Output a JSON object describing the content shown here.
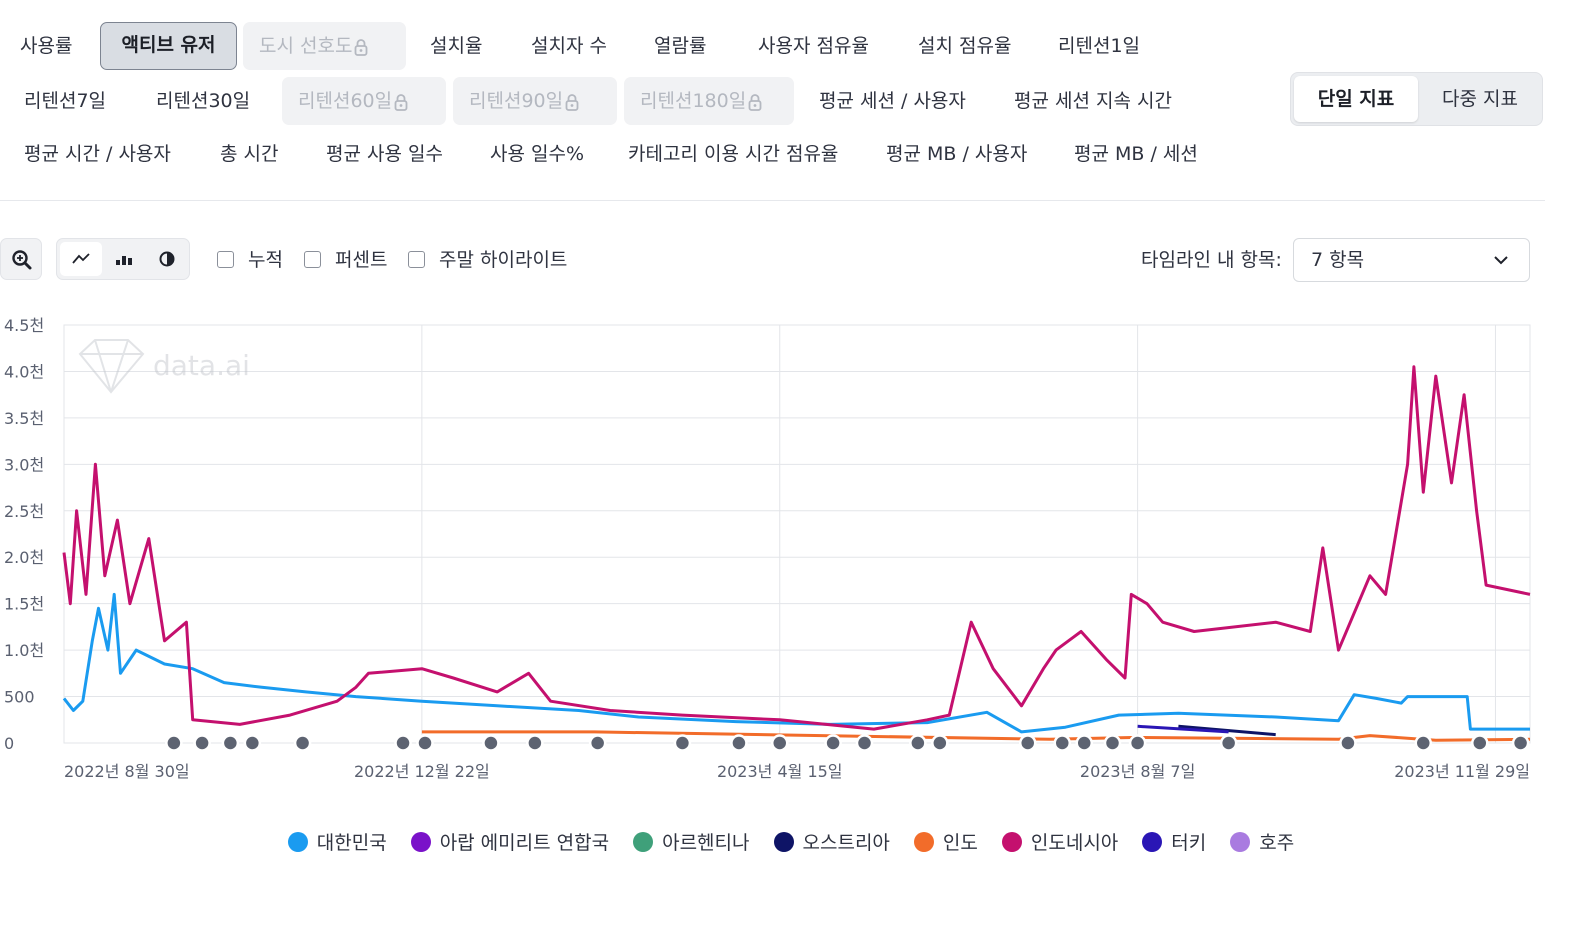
{
  "metric_tabs": [
    {
      "label": "사용률",
      "state": "normal"
    },
    {
      "label": "액티브 유저",
      "state": "active"
    },
    {
      "label": "도시 선호도",
      "state": "locked"
    },
    {
      "label": "설치율",
      "state": "normal"
    },
    {
      "label": "설치자 수",
      "state": "normal"
    },
    {
      "label": "열람률",
      "state": "normal"
    },
    {
      "label": "사용자 점유율",
      "state": "normal"
    },
    {
      "label": "설치 점유율",
      "state": "normal"
    },
    {
      "label": "리텐션1일",
      "state": "normal"
    },
    {
      "label": "리텐션7일",
      "state": "normal"
    },
    {
      "label": "리텐션30일",
      "state": "normal"
    },
    {
      "label": "리텐션60일",
      "state": "locked"
    },
    {
      "label": "리텐션90일",
      "state": "locked"
    },
    {
      "label": "리텐션180일",
      "state": "locked"
    },
    {
      "label": "평균 세션 / 사용자",
      "state": "normal"
    },
    {
      "label": "평균 세션 지속 시간",
      "state": "normal"
    },
    {
      "label": "평균 시간 / 사용자",
      "state": "normal"
    },
    {
      "label": "총 시간",
      "state": "normal"
    },
    {
      "label": "평균 사용 일수",
      "state": "normal"
    },
    {
      "label": "사용 일수%",
      "state": "normal"
    },
    {
      "label": "카테고리 이용 시간 점유율",
      "state": "normal"
    },
    {
      "label": "평균 MB / 사용자",
      "state": "normal"
    },
    {
      "label": "평균 MB / 세션",
      "state": "normal"
    }
  ],
  "mode": {
    "single": "단일 지표",
    "multi": "다중 지표",
    "selected": "single"
  },
  "toolbar": {
    "zoom_icon": "zoom-in-icon",
    "chart_types": [
      "line-chart-icon",
      "bar-chart-icon",
      "pie-chart-icon"
    ],
    "selected_chart_type": "line",
    "checkboxes": [
      {
        "label": "누적",
        "checked": false
      },
      {
        "label": "퍼센트",
        "checked": false
      },
      {
        "label": "주말 하이라이트",
        "checked": false
      }
    ],
    "timeline_label": "타임라인 내 항목:",
    "timeline_value": "7 항목"
  },
  "watermark": "data.ai",
  "colors": {
    "korea": "#1a9bf0",
    "uae": "#7a12c9",
    "argentina": "#3fa07a",
    "austria": "#0e1466",
    "india": "#f26c2a",
    "indonesia": "#c4106e",
    "turkey": "#2a16b5",
    "australia": "#a97be0"
  },
  "chart_data": {
    "type": "line",
    "title": "",
    "xlabel": "",
    "ylabel": "",
    "x_range": [
      "2022-08-30",
      "2023-12-10"
    ],
    "ylim": [
      0,
      4500
    ],
    "y_ticks": [
      0,
      500,
      1000,
      1500,
      2000,
      2500,
      3000,
      3500,
      4000,
      4500
    ],
    "y_tick_labels": [
      "0",
      "500",
      "1.0천",
      "1.5천",
      "2.0천",
      "2.5천",
      "3.0천",
      "3.5천",
      "4.0천",
      "4.5천"
    ],
    "x_tick_labels": [
      {
        "date": "2022-08-30",
        "label": "2022년 8월 30일"
      },
      {
        "date": "2022-12-22",
        "label": "2022년 12월 22일"
      },
      {
        "date": "2023-04-15",
        "label": "2023년 4월 15일"
      },
      {
        "date": "2023-08-07",
        "label": "2023년 8월 7일"
      },
      {
        "date": "2023-11-29",
        "label": "2023년 11월 29일"
      }
    ],
    "grid": true,
    "legend_position": "bottom",
    "series": [
      {
        "name": "대한민국",
        "color": "#1a9bf0",
        "points": [
          [
            "2022-08-30",
            480
          ],
          [
            "2022-09-02",
            350
          ],
          [
            "2022-09-05",
            450
          ],
          [
            "2022-09-08",
            1100
          ],
          [
            "2022-09-10",
            1450
          ],
          [
            "2022-09-13",
            1000
          ],
          [
            "2022-09-15",
            1600
          ],
          [
            "2022-09-17",
            750
          ],
          [
            "2022-09-22",
            1000
          ],
          [
            "2022-10-01",
            850
          ],
          [
            "2022-10-10",
            800
          ],
          [
            "2022-10-20",
            650
          ],
          [
            "2022-11-01",
            600
          ],
          [
            "2022-11-15",
            550
          ],
          [
            "2022-12-01",
            500
          ],
          [
            "2022-12-22",
            450
          ],
          [
            "2023-01-15",
            400
          ],
          [
            "2023-02-10",
            350
          ],
          [
            "2023-03-01",
            280
          ],
          [
            "2023-04-01",
            230
          ],
          [
            "2023-05-01",
            200
          ],
          [
            "2023-06-01",
            220
          ],
          [
            "2023-06-20",
            330
          ],
          [
            "2023-07-01",
            120
          ],
          [
            "2023-07-15",
            170
          ],
          [
            "2023-08-01",
            300
          ],
          [
            "2023-08-20",
            320
          ],
          [
            "2023-09-20",
            280
          ],
          [
            "2023-10-10",
            240
          ],
          [
            "2023-10-15",
            520
          ],
          [
            "2023-10-22",
            480
          ],
          [
            "2023-10-30",
            430
          ],
          [
            "2023-11-01",
            500
          ],
          [
            "2023-11-20",
            500
          ],
          [
            "2023-11-21",
            150
          ],
          [
            "2023-12-10",
            150
          ]
        ]
      },
      {
        "name": "아랍 에미리트 연합국",
        "color": "#7a12c9",
        "points": []
      },
      {
        "name": "아르헨티나",
        "color": "#3fa07a",
        "points": []
      },
      {
        "name": "오스트리아",
        "color": "#0e1466",
        "points": [
          [
            "2023-08-20",
            180
          ],
          [
            "2023-09-20",
            90
          ]
        ]
      },
      {
        "name": "인도",
        "color": "#f26c2a",
        "points": [
          [
            "2022-12-22",
            120
          ],
          [
            "2023-02-15",
            120
          ],
          [
            "2023-07-10",
            40
          ],
          [
            "2023-08-07",
            60
          ],
          [
            "2023-10-10",
            40
          ],
          [
            "2023-10-20",
            80
          ],
          [
            "2023-11-10",
            30
          ],
          [
            "2023-12-10",
            40
          ]
        ]
      },
      {
        "name": "인도네시아",
        "color": "#c4106e",
        "points": [
          [
            "2022-08-30",
            2050
          ],
          [
            "2022-09-01",
            1500
          ],
          [
            "2022-09-03",
            2500
          ],
          [
            "2022-09-06",
            1600
          ],
          [
            "2022-09-09",
            3000
          ],
          [
            "2022-09-12",
            1800
          ],
          [
            "2022-09-16",
            2400
          ],
          [
            "2022-09-20",
            1500
          ],
          [
            "2022-09-26",
            2200
          ],
          [
            "2022-10-01",
            1100
          ],
          [
            "2022-10-08",
            1300
          ],
          [
            "2022-10-10",
            250
          ],
          [
            "2022-10-25",
            200
          ],
          [
            "2022-11-10",
            300
          ],
          [
            "2022-11-25",
            450
          ],
          [
            "2022-12-01",
            600
          ],
          [
            "2022-12-05",
            750
          ],
          [
            "2022-12-22",
            800
          ],
          [
            "2023-01-01",
            700
          ],
          [
            "2023-01-15",
            550
          ],
          [
            "2023-01-25",
            750
          ],
          [
            "2023-02-01",
            450
          ],
          [
            "2023-02-20",
            350
          ],
          [
            "2023-03-15",
            300
          ],
          [
            "2023-04-15",
            250
          ],
          [
            "2023-05-15",
            150
          ],
          [
            "2023-06-01",
            250
          ],
          [
            "2023-06-08",
            300
          ],
          [
            "2023-06-15",
            1300
          ],
          [
            "2023-06-22",
            800
          ],
          [
            "2023-07-01",
            400
          ],
          [
            "2023-07-08",
            800
          ],
          [
            "2023-07-12",
            1000
          ],
          [
            "2023-07-20",
            1200
          ],
          [
            "2023-07-28",
            900
          ],
          [
            "2023-08-03",
            700
          ],
          [
            "2023-08-05",
            1600
          ],
          [
            "2023-08-10",
            1500
          ],
          [
            "2023-08-15",
            1300
          ],
          [
            "2023-08-25",
            1200
          ],
          [
            "2023-09-20",
            1300
          ],
          [
            "2023-10-01",
            1200
          ],
          [
            "2023-10-05",
            2100
          ],
          [
            "2023-10-10",
            1000
          ],
          [
            "2023-10-20",
            1800
          ],
          [
            "2023-10-25",
            1600
          ],
          [
            "2023-11-01",
            3000
          ],
          [
            "2023-11-03",
            4050
          ],
          [
            "2023-11-06",
            2700
          ],
          [
            "2023-11-10",
            3950
          ],
          [
            "2023-11-15",
            2800
          ],
          [
            "2023-11-19",
            3750
          ],
          [
            "2023-11-23",
            2500
          ],
          [
            "2023-11-26",
            1700
          ],
          [
            "2023-12-10",
            1600
          ]
        ]
      },
      {
        "name": "터키",
        "color": "#2a16b5",
        "points": [
          [
            "2023-08-07",
            180
          ],
          [
            "2023-09-05",
            120
          ]
        ]
      },
      {
        "name": "호주",
        "color": "#a97be0",
        "points": []
      }
    ]
  }
}
